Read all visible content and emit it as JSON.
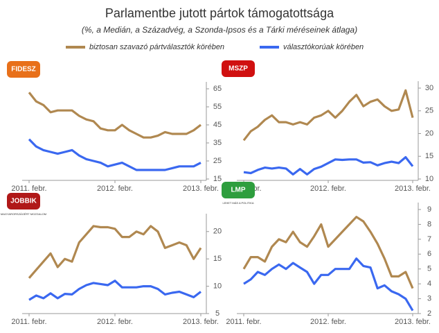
{
  "title": "Parlamentbe jutott pártok támogatottsága",
  "subtitle": "(%, a Medián, a Századvég, a Szonda-Ipsos és a Tárki méréseinek átlaga)",
  "legend": [
    {
      "name": "biztosan szavazó pártválasztók körében",
      "color": "#b08850"
    },
    {
      "name": "választókorúak körében",
      "color": "#3a68f0"
    }
  ],
  "chart_data": [
    {
      "type": "line",
      "logo": "FIDESZ",
      "categories": [
        "2011. febr.",
        null,
        null,
        null,
        null,
        null,
        null,
        null,
        null,
        null,
        null,
        null,
        "2012. febr.",
        null,
        null,
        null,
        null,
        null,
        null,
        null,
        null,
        null,
        null,
        null,
        "2013. febr."
      ],
      "series": [
        {
          "color": "#b08850",
          "values": [
            63,
            58,
            56,
            52,
            53,
            53,
            53,
            50,
            48,
            47,
            43,
            42,
            42,
            45,
            42,
            40,
            38,
            38,
            39,
            41,
            40,
            40,
            40,
            42,
            45
          ]
        },
        {
          "color": "#3a68f0",
          "values": [
            37,
            33,
            31,
            30,
            29,
            30,
            31,
            28,
            26,
            25,
            24,
            22,
            23,
            24,
            22,
            20,
            20,
            20,
            20,
            20,
            21,
            22,
            22,
            22,
            24
          ]
        }
      ],
      "ylim": [
        15,
        65
      ],
      "yticks": [
        15,
        25,
        35,
        45,
        55,
        65
      ]
    },
    {
      "type": "line",
      "logo": "MSZP",
      "categories": [
        "2011. febr.",
        null,
        null,
        null,
        null,
        null,
        null,
        null,
        null,
        null,
        null,
        null,
        "2012. febr.",
        null,
        null,
        null,
        null,
        null,
        null,
        null,
        null,
        null,
        null,
        null,
        "2013. febr."
      ],
      "series": [
        {
          "color": "#b08850",
          "values": [
            18.5,
            20.5,
            21.5,
            23,
            24,
            22.5,
            22.5,
            22,
            22.5,
            22,
            23.5,
            24,
            25,
            23.5,
            25,
            27,
            28.5,
            26,
            27,
            27.5,
            26,
            25,
            25.3,
            29.5,
            23.5
          ]
        },
        {
          "color": "#3a68f0",
          "values": [
            11.5,
            11.3,
            12,
            12.5,
            12.3,
            12.5,
            12.3,
            11,
            12.2,
            11,
            12.2,
            12.7,
            13.5,
            14.3,
            14.2,
            14.3,
            14.3,
            13.6,
            13.7,
            13,
            13.5,
            13.8,
            13.5,
            14.8,
            12.8
          ]
        }
      ],
      "ylim": [
        10,
        30
      ],
      "yticks": [
        10,
        15,
        20,
        25,
        30
      ]
    },
    {
      "type": "line",
      "logo": "JOBBIK",
      "logo_subtitle": "MAGYARORSZÁGÉRT MOZGALOM",
      "categories": [
        "2011. febr.",
        null,
        null,
        null,
        null,
        null,
        null,
        null,
        null,
        null,
        null,
        null,
        "2012. febr.",
        null,
        null,
        null,
        null,
        null,
        null,
        null,
        null,
        null,
        null,
        null,
        "2013. febr."
      ],
      "series": [
        {
          "color": "#b08850",
          "values": [
            11.5,
            13,
            14.5,
            16,
            13.5,
            15,
            14.5,
            18,
            19.5,
            21,
            20.8,
            20.8,
            20.5,
            19,
            19,
            20,
            19.5,
            21,
            20,
            17,
            17.5,
            18,
            17.5,
            15,
            17
          ]
        },
        {
          "color": "#3a68f0",
          "values": [
            7.5,
            8.3,
            7.8,
            8.7,
            7.8,
            8.6,
            8.5,
            9.5,
            10.2,
            10.6,
            10.4,
            10.2,
            11,
            9.8,
            9.8,
            9.8,
            10,
            10,
            9.5,
            8.5,
            8.8,
            9,
            8.5,
            8,
            9
          ]
        }
      ],
      "ylim": [
        5,
        22
      ],
      "yticks": [
        5,
        10,
        15,
        20
      ]
    },
    {
      "type": "line",
      "logo": "LMP",
      "logo_subtitle": "LEHET MÁS A POLITIKA",
      "categories": [
        "2011. febr.",
        null,
        null,
        null,
        null,
        null,
        null,
        null,
        null,
        null,
        null,
        null,
        "2012. febr.",
        null,
        null,
        null,
        null,
        null,
        null,
        null,
        null,
        null,
        null,
        null,
        "2013. febr."
      ],
      "series": [
        {
          "color": "#b08850",
          "values": [
            5,
            5.8,
            5.8,
            5.5,
            6.5,
            7,
            6.8,
            7.5,
            6.8,
            6.5,
            7.2,
            8,
            6.5,
            7,
            7.5,
            8,
            8.5,
            8.2,
            7.5,
            6.7,
            5.7,
            4.5,
            4.5,
            4.8,
            3.7
          ]
        },
        {
          "color": "#3a68f0",
          "values": [
            4,
            4.3,
            4.8,
            4.6,
            5,
            5.3,
            5,
            5.4,
            5.1,
            4.8,
            4,
            4.6,
            4.6,
            5,
            5,
            5,
            5.7,
            5.2,
            5.1,
            3.7,
            3.9,
            3.5,
            3.3,
            3,
            2.2
          ]
        }
      ],
      "ylim": [
        2,
        9
      ],
      "yticks": [
        2,
        3,
        4,
        5,
        6,
        7,
        8,
        9
      ]
    }
  ]
}
